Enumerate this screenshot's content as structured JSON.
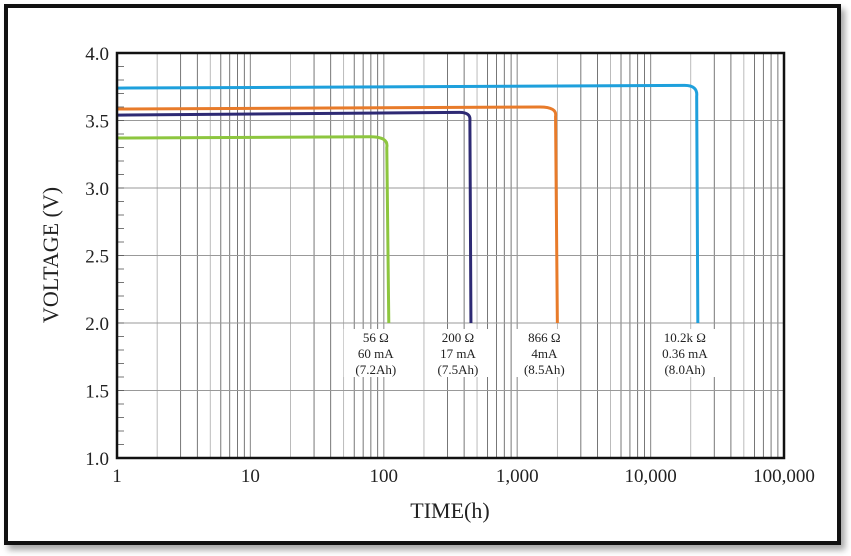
{
  "chart_data": {
    "type": "line",
    "xlabel": "TIME(h)",
    "ylabel": "VOLTAGE (V)",
    "xscale": "log",
    "xlim": [
      1,
      100000
    ],
    "ylim": [
      1.0,
      4.0
    ],
    "grid": true,
    "x_ticks": [
      1,
      10,
      100,
      1000,
      10000,
      100000
    ],
    "x_tick_labels": [
      "1",
      "10",
      "100",
      "1,000",
      "10,000",
      "100,000"
    ],
    "y_ticks": [
      1.0,
      1.5,
      2.0,
      2.5,
      3.0,
      3.5,
      4.0
    ],
    "y_tick_labels": [
      "1.0",
      "1.5",
      "2.0",
      "2.5",
      "3.0",
      "3.5",
      "4.0"
    ],
    "series": [
      {
        "color": "#8dc63f",
        "x": [
          1,
          79,
          100,
          109
        ],
        "y": [
          3.37,
          3.38,
          3.3,
          2.0
        ],
        "annotation": [
          "56 Ω",
          "60 mA",
          "(7.2Ah)"
        ]
      },
      {
        "color": "#2e2a74",
        "x": [
          1,
          370,
          430,
          450
        ],
        "y": [
          3.54,
          3.56,
          3.5,
          2.0
        ],
        "annotation": [
          "200 Ω",
          "17 mA",
          "(7.5Ah)"
        ]
      },
      {
        "color": "#e87b2a",
        "x": [
          1,
          1480,
          1850,
          2000
        ],
        "y": [
          3.585,
          3.6,
          3.53,
          2.0
        ],
        "annotation": [
          "866 Ω",
          "4mA",
          "(8.5Ah)"
        ]
      },
      {
        "color": "#1ea0dc",
        "x": [
          1,
          18000,
          21500,
          22600
        ],
        "y": [
          3.74,
          3.76,
          3.68,
          2.0
        ],
        "annotation": [
          "10.2k Ω",
          "0.36 mA",
          "(8.0Ah)"
        ]
      }
    ]
  }
}
